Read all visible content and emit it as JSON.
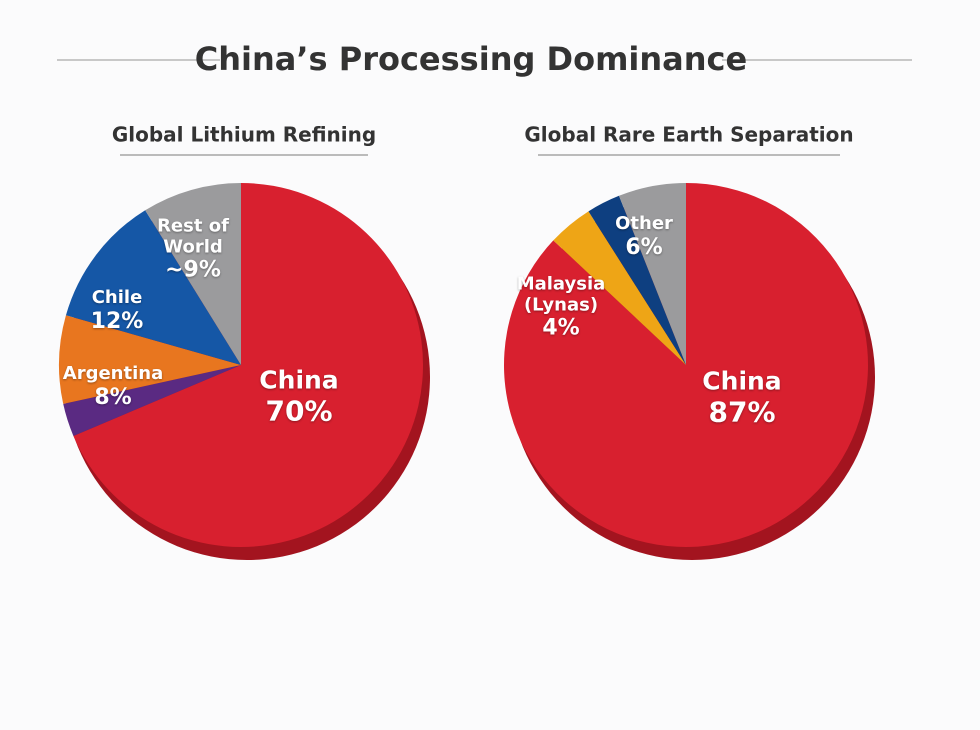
{
  "title": "China’s Processing Dominance",
  "chart_data": [
    {
      "type": "pie",
      "title": "Global Lithium Refining",
      "categories": [
        "China",
        null,
        "Argentina",
        "Chile",
        "Rest of World"
      ],
      "values": [
        70,
        3,
        8,
        12,
        9
      ],
      "value_labels": [
        "70%",
        null,
        "8%",
        "12%",
        "~9%"
      ],
      "colors": [
        "#d8202f",
        "#5a2a82",
        "#e8761f",
        "#1557a6",
        "#9b9b9d"
      ]
    },
    {
      "type": "pie",
      "title": "Global Rare Earth Separation",
      "categories": [
        "China",
        "Malaysia (Lynas)",
        null,
        "Other"
      ],
      "values": [
        87,
        4,
        3,
        6
      ],
      "value_labels": [
        "87%",
        "4%",
        null,
        "6%"
      ],
      "colors": [
        "#d8202f",
        "#eea516",
        "#0e3f80",
        "#9b9b9d"
      ]
    }
  ]
}
